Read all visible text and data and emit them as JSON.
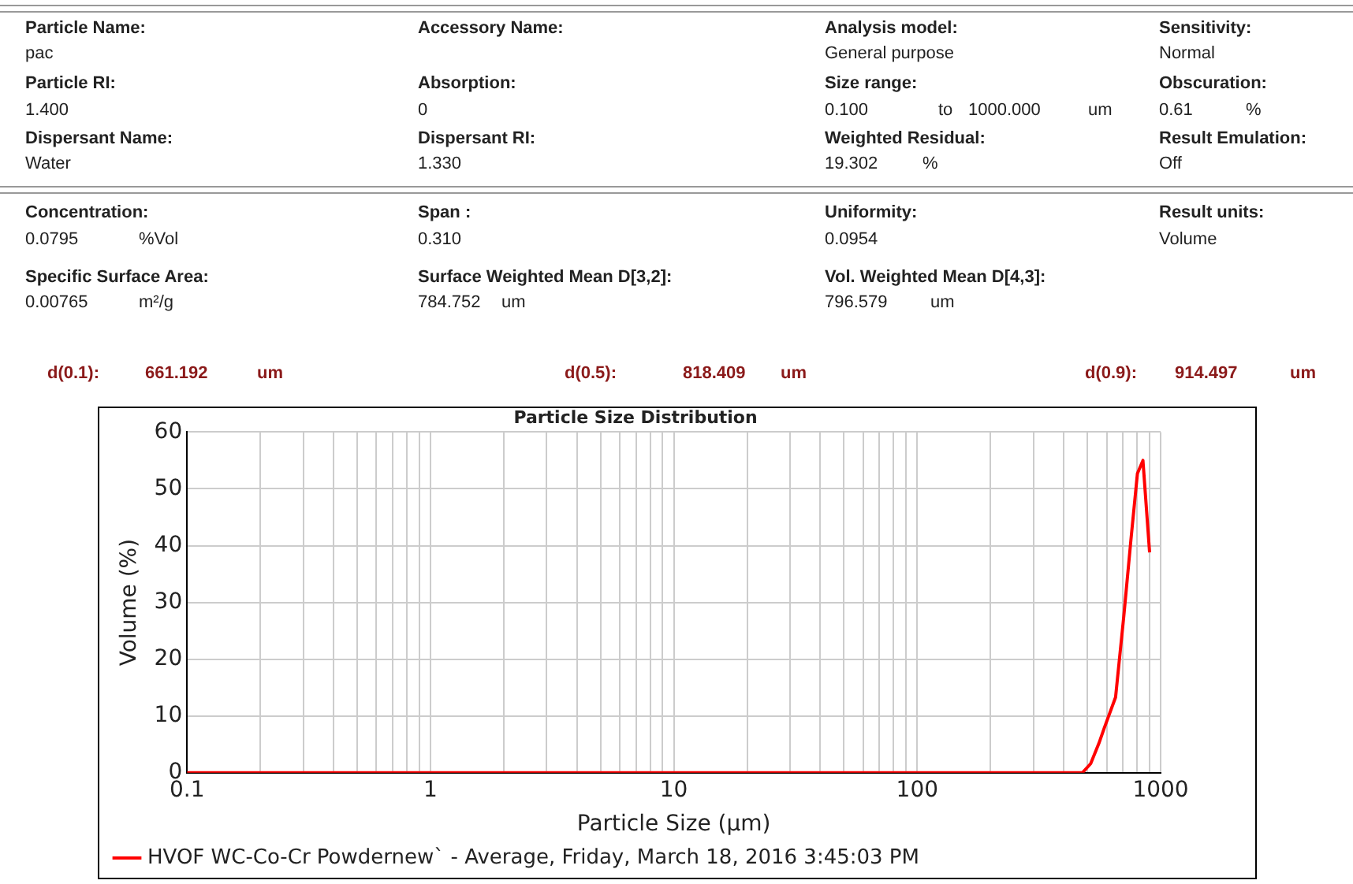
{
  "chart_data": {
    "type": "line",
    "title": "Particle Size Distribution",
    "xlabel": "Particle Size (μm)",
    "ylabel": "Volume (%)",
    "annotations": [
      "Particle Name:",
      "pac",
      "Accessory Name:",
      "Analysis model:",
      "General purpose",
      "Sensitivity:",
      "Normal",
      "Particle RI:",
      "1.400",
      "Absorption:",
      "0",
      "Size range:",
      "0.100",
      "to",
      "1000.000",
      "um",
      "Obscuration:",
      "0.61",
      "%",
      "Dispersant Name:",
      "Water",
      "Dispersant RI:",
      "1.330",
      "Weighted Residual:",
      "19.302",
      "%",
      "Result Emulation:",
      "Off",
      "Concentration:",
      "0.0795",
      "%Vol",
      "Span :",
      "0.310",
      "Uniformity:",
      "0.0954",
      "Result units:",
      "Volume",
      "Specific Surface Area:",
      "0.00765",
      "m²/g",
      "Surface Weighted Mean D[3,2]:",
      "784.752",
      "um",
      "Vol. Weighted Mean D[4,3]:",
      "796.579",
      "um",
      "d(0.1):",
      "661.192",
      "um",
      "d(0.5):",
      "818.409",
      "um",
      "d(0.9):",
      "914.497",
      "um"
    ],
    "log": "x",
    "xlim": [
      0.1,
      1000
    ],
    "ylim": [
      0,
      60
    ],
    "xticks": [
      0.1,
      {
        "value": 0.2,
        "label": null
      },
      {
        "value": 0.3,
        "label": null
      },
      {
        "value": 0.4,
        "label": null
      },
      {
        "value": 0.5,
        "label": null
      },
      {
        "value": 0.6,
        "label": null
      },
      {
        "value": 0.7,
        "label": null
      },
      {
        "value": 0.8,
        "label": null
      },
      {
        "value": 0.9,
        "label": null
      },
      1,
      {
        "value": 2,
        "label": null
      },
      {
        "value": 3,
        "label": null
      },
      {
        "value": 4,
        "label": null
      },
      {
        "value": 5,
        "label": null
      },
      {
        "value": 6,
        "label": null
      },
      {
        "value": 7,
        "label": null
      },
      {
        "value": 8,
        "label": null
      },
      {
        "value": 9,
        "label": null
      },
      10,
      {
        "value": 20,
        "label": null
      },
      {
        "value": 30,
        "label": null
      },
      {
        "value": 40,
        "label": null
      },
      {
        "value": 50,
        "label": null
      },
      {
        "value": 60,
        "label": null
      },
      {
        "value": 70,
        "label": null
      },
      {
        "value": 80,
        "label": null
      },
      {
        "value": 90,
        "label": null
      },
      100,
      {
        "value": 200,
        "label": null
      },
      {
        "value": 300,
        "label": null
      },
      {
        "value": 400,
        "label": null
      },
      {
        "value": 500,
        "label": null
      },
      {
        "value": 600,
        "label": null
      },
      {
        "value": 700,
        "label": null
      },
      {
        "value": 800,
        "label": null
      },
      {
        "value": 900,
        "label": null
      },
      1000
    ],
    "yticks": [
      0,
      10,
      20,
      30,
      40,
      50,
      60
    ],
    "grid": true,
    "legend": "bottom",
    "marker": "none",
    "line_style": "solid",
    "series": [
      {
        "name": "HVOF WC-Co-Cr Powdernew` - Average, Friday, March 18, 2016 3:45:03 PM",
        "color": "#ff0000",
        "x": [
          0.1,
          1,
          10,
          100,
          477,
          516,
          558,
          587,
          653,
          706,
          755,
          803,
          846,
          901
        ],
        "values": [
          0,
          0,
          0,
          0,
          0,
          1.6,
          5.2,
          7.9,
          13.3,
          27.6,
          41,
          52.7,
          55,
          38.8
        ]
      }
    ]
  }
}
